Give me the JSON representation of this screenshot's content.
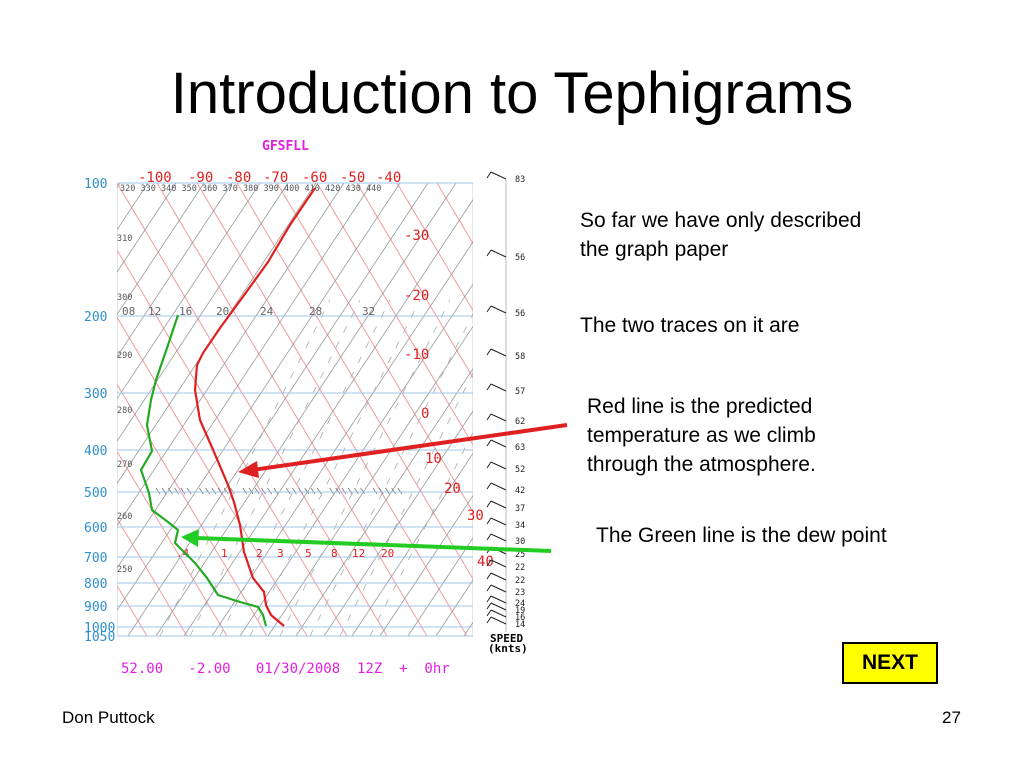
{
  "slide": {
    "title": "Introduction to Tephigrams",
    "footer_left": "Don Puttock",
    "page_number": "27",
    "next_label": "NEXT"
  },
  "notes": {
    "graph_paper": "So far we have only described the graph paper",
    "two_traces": "The two traces on it are",
    "red_line": "Red line is the predicted temperature as we climb through the atmosphere.",
    "green_line": "The Green line is the dew point"
  },
  "chart_data": {
    "type": "tephigram",
    "model_label": "GFSFLL",
    "footer_label": "52.00   -2.00   01/30/2008  12Z  +  0hr",
    "pressure_ticks": [
      "100",
      "200",
      "300",
      "400",
      "500",
      "600",
      "700",
      "800",
      "900",
      "1000",
      "1050"
    ],
    "top_temperature_ticks": [
      "-100",
      "-90",
      "-80",
      "-70",
      "-60",
      "-50",
      "-40"
    ],
    "right_temperature_ticks": [
      "-30",
      "-20",
      "-10",
      "0",
      "10",
      "20",
      "30",
      "40"
    ],
    "theta_top_ticks": [
      "320",
      "330",
      "340",
      "350",
      "360",
      "370",
      "380",
      "390",
      "400",
      "410",
      "420",
      "430",
      "440"
    ],
    "theta_left_ticks": [
      "310",
      "300",
      "290",
      "280",
      "270",
      "260",
      "250"
    ],
    "mixing_ratio_upper": [
      "08",
      "12",
      "16",
      "20",
      "24",
      "28",
      "32"
    ],
    "mixing_ratio_lower": [
      ".4",
      "1",
      "2",
      "3",
      "5",
      "8",
      "12",
      "20"
    ],
    "wind_speeds": [
      "83",
      "56",
      "56",
      "58",
      "57",
      "62",
      "63",
      "52",
      "42",
      "37",
      "34",
      "30",
      "25",
      "22",
      "22",
      "23",
      "24",
      "19",
      "16",
      "14"
    ],
    "speed_label": "SPEED",
    "speed_unit": "(knts)",
    "series": [
      {
        "name": "Temperature",
        "color": "#e02020"
      },
      {
        "name": "Dew point",
        "color": "#22aa22"
      }
    ],
    "colors": {
      "grid_red": "#f29a9a",
      "grid_gray": "#999999",
      "axis_blue": "#2f8fd0",
      "magenta": "#e020e0",
      "temp_red": "#e02020",
      "dew_green": "#22aa22",
      "isobar": "#9fc7ee",
      "arrow_red": "#e02020",
      "arrow_green": "#22cc22"
    }
  }
}
